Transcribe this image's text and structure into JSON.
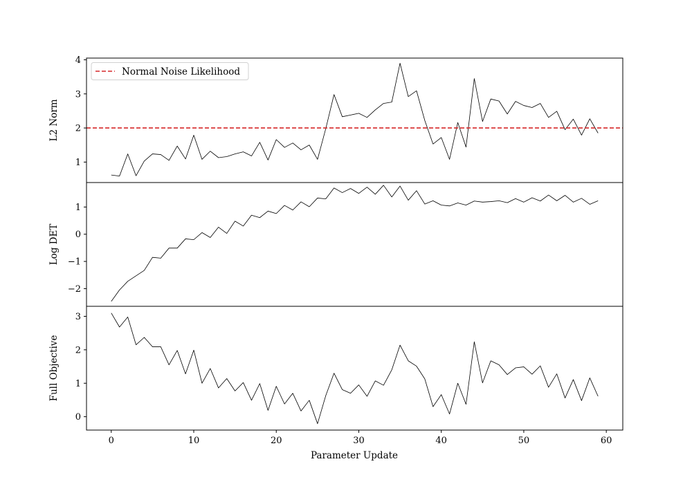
{
  "chart_data": {
    "type": "line",
    "xlabel": "Parameter Update",
    "xlim": [
      -3,
      62
    ],
    "xticks": [
      0,
      10,
      20,
      30,
      40,
      50,
      60
    ],
    "x": [
      0,
      1,
      2,
      3,
      4,
      5,
      6,
      7,
      8,
      9,
      10,
      11,
      12,
      13,
      14,
      15,
      16,
      17,
      18,
      19,
      20,
      21,
      22,
      23,
      24,
      25,
      26,
      27,
      28,
      29,
      30,
      31,
      32,
      33,
      34,
      35,
      36,
      37,
      38,
      39,
      40,
      41,
      42,
      43,
      44,
      45,
      46,
      47,
      48,
      49,
      50,
      51,
      52,
      53,
      54,
      55,
      56,
      57,
      58,
      59
    ],
    "line_color": "#000000",
    "panels": [
      {
        "ylabel": "L2 Norm",
        "ylim": [
          0.4,
          4.05
        ],
        "yticks": [
          1,
          2,
          3,
          4
        ],
        "series": [
          {
            "values": [
              0.62,
              0.59,
              1.24,
              0.6,
              1.03,
              1.24,
              1.22,
              1.05,
              1.47,
              1.09,
              1.79,
              1.08,
              1.32,
              1.13,
              1.16,
              1.24,
              1.3,
              1.18,
              1.58,
              1.06,
              1.66,
              1.43,
              1.56,
              1.36,
              1.5,
              1.08,
              1.98,
              2.98,
              2.33,
              2.38,
              2.43,
              2.31,
              2.53,
              2.72,
              2.76,
              3.9,
              2.92,
              3.09,
              2.22,
              1.53,
              1.72,
              1.08,
              2.16,
              1.44,
              3.45,
              2.19,
              2.85,
              2.79,
              2.41,
              2.78,
              2.66,
              2.6,
              2.72,
              2.31,
              2.49,
              1.95,
              2.26,
              1.79,
              2.27,
              1.85
            ]
          }
        ],
        "reference_line": {
          "label": "Normal Noise Likelihood",
          "y": 2.0,
          "color": "#d62728",
          "style": "dashed"
        },
        "legend_position": "upper-left"
      },
      {
        "ylabel": "Log DET",
        "ylim": [
          -2.65,
          1.9
        ],
        "yticks": [
          -2,
          -1,
          0,
          1
        ],
        "series": [
          {
            "values": [
              -2.47,
              -2.05,
              -1.73,
              -1.53,
              -1.33,
              -0.85,
              -0.88,
              -0.51,
              -0.51,
              -0.17,
              -0.2,
              0.06,
              -0.12,
              0.26,
              0.03,
              0.48,
              0.3,
              0.7,
              0.61,
              0.85,
              0.76,
              1.06,
              0.89,
              1.19,
              1.01,
              1.33,
              1.3,
              1.7,
              1.53,
              1.68,
              1.5,
              1.73,
              1.47,
              1.8,
              1.37,
              1.77,
              1.25,
              1.6,
              1.11,
              1.23,
              1.07,
              1.04,
              1.15,
              1.07,
              1.22,
              1.18,
              1.2,
              1.23,
              1.16,
              1.31,
              1.18,
              1.34,
              1.22,
              1.44,
              1.23,
              1.43,
              1.18,
              1.32,
              1.1,
              1.23
            ]
          }
        ]
      },
      {
        "ylabel": "Full Objective",
        "ylim": [
          -0.4,
          3.3
        ],
        "yticks": [
          0,
          1,
          2,
          3
        ],
        "series": [
          {
            "values": [
              3.1,
              2.68,
              2.98,
              2.15,
              2.37,
              2.09,
              2.09,
              1.55,
              1.98,
              1.28,
              1.99,
              1.0,
              1.44,
              0.86,
              1.14,
              0.77,
              1.02,
              0.49,
              0.99,
              0.19,
              0.91,
              0.38,
              0.7,
              0.17,
              0.49,
              -0.21,
              0.63,
              1.3,
              0.81,
              0.7,
              0.95,
              0.61,
              1.07,
              0.94,
              1.4,
              2.14,
              1.67,
              1.51,
              1.13,
              0.3,
              0.66,
              0.08,
              1.0,
              0.37,
              2.24,
              1.01,
              1.67,
              1.55,
              1.26,
              1.46,
              1.49,
              1.27,
              1.52,
              0.88,
              1.28,
              0.56,
              1.11,
              0.48,
              1.16,
              0.61
            ]
          }
        ]
      }
    ]
  }
}
